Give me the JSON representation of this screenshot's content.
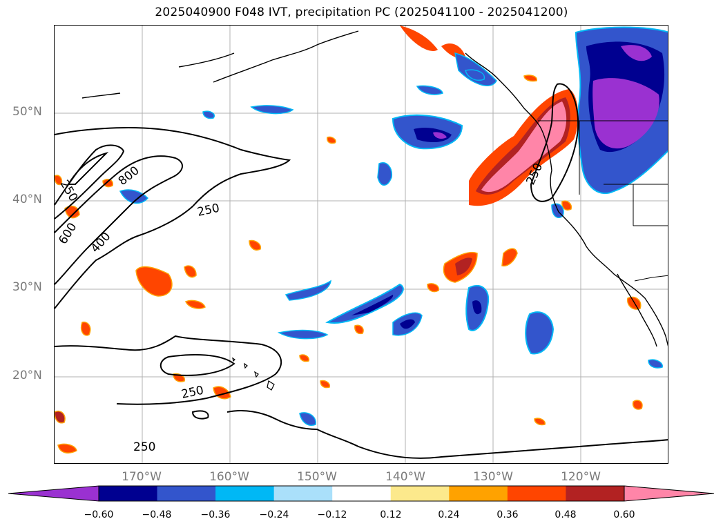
{
  "title": "2025040900 F048 IVT, precipitation PC (2025041100 - 2025041200)",
  "map": {
    "lat_labels": [
      "50°N",
      "40°N",
      "30°N",
      "20°N"
    ],
    "lon_labels": [
      "170°W",
      "160°W",
      "150°W",
      "140°W",
      "130°W",
      "120°W"
    ],
    "contour_labels": [
      "250",
      "600",
      "400",
      "800",
      "250",
      "250",
      "250",
      "250"
    ],
    "contour_color": "#000000",
    "grid_color": "#b0b0b0"
  },
  "colorbar": {
    "ticks": [
      "−0.60",
      "−0.48",
      "−0.36",
      "−0.24",
      "−0.12",
      "0.12",
      "0.24",
      "0.36",
      "0.48",
      "0.60"
    ],
    "colors": [
      "#9a31d1",
      "#000090",
      "#3355cc",
      "#00b8f5",
      "#aae0fa",
      "#ffffff",
      "#fce98c",
      "#ffa200",
      "#ff4500",
      "#b22222",
      "#ff85a8"
    ]
  }
}
